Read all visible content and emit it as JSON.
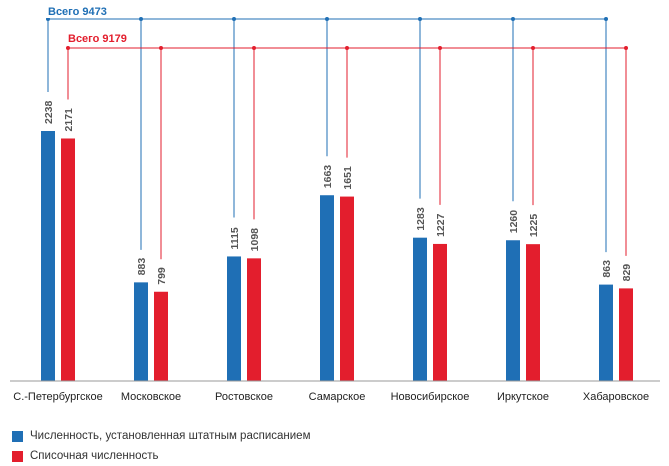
{
  "chart_data": {
    "type": "bar",
    "categories": [
      "С.-Петербургское",
      "Московское",
      "Ростовское",
      "Самарское",
      "Новосибирское",
      "Иркутское",
      "Хабаровское"
    ],
    "series": [
      {
        "name": "Численность, установленная штатным расписанием",
        "color": "#1f6fb5",
        "values": [
          2238,
          883,
          1115,
          1663,
          1283,
          1260,
          863
        ],
        "total_label": "Всего 9473"
      },
      {
        "name": "Списочная численность",
        "color": "#e31e2d",
        "values": [
          2171,
          799,
          1098,
          1651,
          1227,
          1225,
          829
        ],
        "total_label": "Всего 9179"
      }
    ],
    "ylim": [
      0,
      2238
    ],
    "grid": false,
    "legend_position": "bottom-left"
  }
}
